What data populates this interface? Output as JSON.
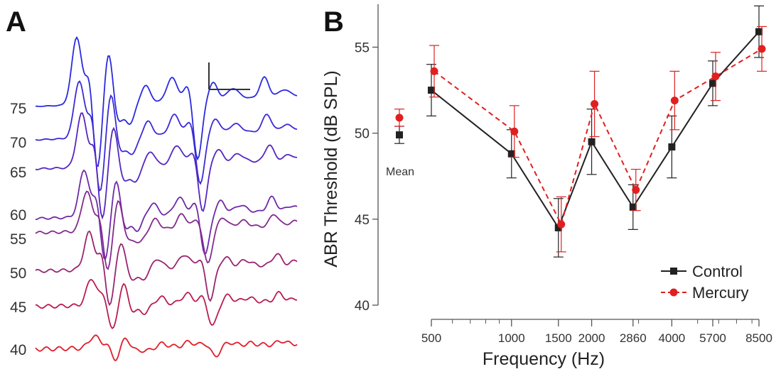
{
  "panel_a": {
    "label": "A",
    "trace_levels": [
      "75",
      "70",
      "65",
      "60",
      "55",
      "50",
      "45",
      "40"
    ],
    "trace_colors": [
      "#2a2ae0",
      "#3b2ad6",
      "#5526c0",
      "#6e2aa8",
      "#852a8e",
      "#9a2470",
      "#b81e50",
      "#e01e2a"
    ]
  },
  "chart_data": {
    "type": "line",
    "panel_label": "B",
    "xlabel": "Frequency (Hz)",
    "ylabel": "ABR Threshold (dB SPL)",
    "x_scale": "log",
    "x_ticks": [
      "500",
      "1000",
      "1500",
      "2000",
      "2860",
      "4000",
      "5700",
      "8500"
    ],
    "x": [
      500,
      1000,
      1500,
      2000,
      2860,
      4000,
      5700,
      8500
    ],
    "ylim": [
      40,
      57
    ],
    "y_ticks": [
      "40",
      "45",
      "50",
      "55"
    ],
    "mean_label": "Mean",
    "legend_position": "bottom-right",
    "series": [
      {
        "name": "Control",
        "color": "#222222",
        "values": [
          52.5,
          48.8,
          44.5,
          49.5,
          45.7,
          49.2,
          52.9,
          55.9
        ],
        "err": [
          1.5,
          1.4,
          1.7,
          1.9,
          1.3,
          1.8,
          1.3,
          1.5
        ],
        "mean": 49.9,
        "mean_err": 0.5
      },
      {
        "name": "Mercury",
        "color": "#e02020",
        "values": [
          53.6,
          50.1,
          44.7,
          51.7,
          46.7,
          51.9,
          53.3,
          54.9
        ],
        "err": [
          1.5,
          1.5,
          1.6,
          1.9,
          1.2,
          1.7,
          1.4,
          1.3
        ],
        "mean": 50.9,
        "mean_err": 0.5
      }
    ]
  }
}
